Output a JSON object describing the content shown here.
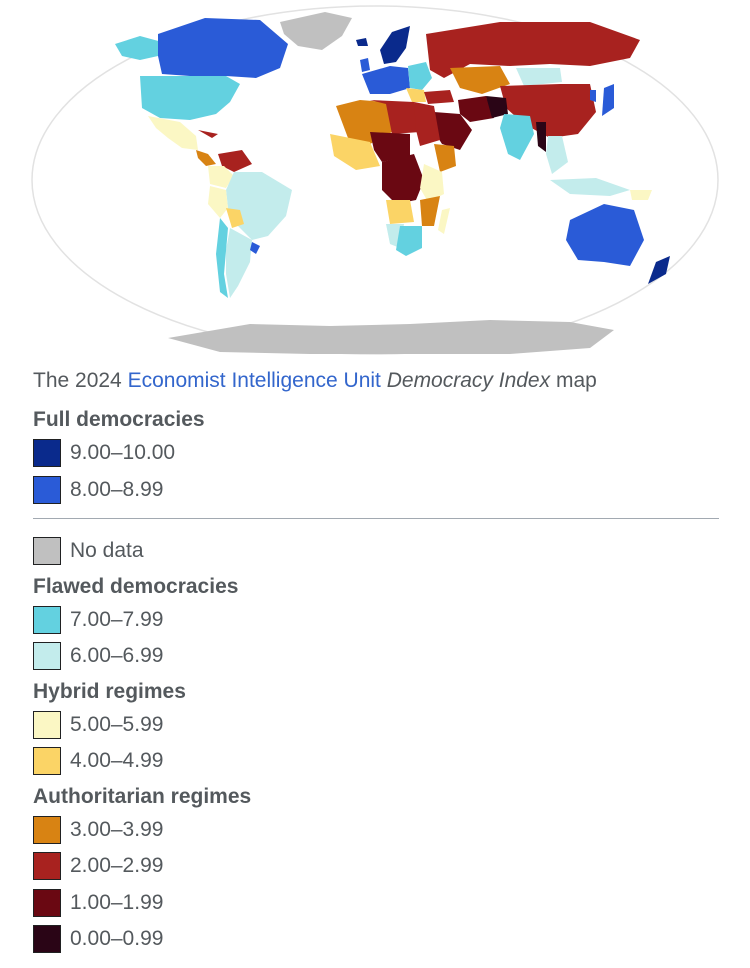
{
  "caption": {
    "prefix": "The 2024 ",
    "link": "Economist Intelligence Unit",
    "space": " ",
    "title": "Democracy Index",
    "suffix": " map"
  },
  "legend": {
    "full": {
      "heading": "Full democracies",
      "items": [
        {
          "label": "9.00–10.00",
          "color": "#0a2a8c"
        },
        {
          "label": "8.00–8.99",
          "color": "#2a5bd7"
        }
      ]
    },
    "no_data": {
      "label": "No data",
      "color": "#c0c0c0"
    },
    "flawed": {
      "heading": "Flawed democracies",
      "items": [
        {
          "label": "7.00–7.99",
          "color": "#63d1e0"
        },
        {
          "label": "6.00–6.99",
          "color": "#c3ecec"
        }
      ]
    },
    "hybrid": {
      "heading": "Hybrid regimes",
      "items": [
        {
          "label": "5.00–5.99",
          "color": "#fbf7c4"
        },
        {
          "label": "4.00–4.99",
          "color": "#fbd466"
        }
      ]
    },
    "authoritarian": {
      "heading": "Authoritarian regimes",
      "items": [
        {
          "label": "3.00–3.99",
          "color": "#d88313"
        },
        {
          "label": "2.00–2.99",
          "color": "#a8221f"
        },
        {
          "label": "1.00–1.99",
          "color": "#6a0812"
        },
        {
          "label": "0.00–0.99",
          "color": "#2a0516"
        }
      ]
    }
  }
}
